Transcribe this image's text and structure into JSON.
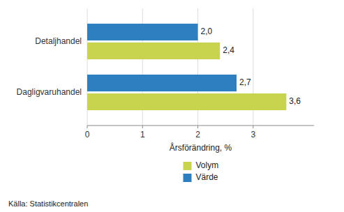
{
  "chart_data": {
    "type": "bar",
    "orientation": "horizontal",
    "categories": [
      "Dagligvaruhandel",
      "Detaljhandel"
    ],
    "series": [
      {
        "name": "Värde",
        "color": "#2e7fc0",
        "values": [
          2.7,
          2.0
        ],
        "value_labels": [
          "2,7",
          "2,0"
        ]
      },
      {
        "name": "Volym",
        "color": "#c8d44e",
        "values": [
          3.6,
          2.4
        ],
        "value_labels": [
          "3,6",
          "2,4"
        ]
      }
    ],
    "xlabel": "Årsförändring, %",
    "xlim": [
      0,
      4.1
    ],
    "xticks": [
      0,
      1,
      2,
      3
    ],
    "grid": true,
    "data_labels": true,
    "legend": "bottom",
    "source": "Källa: Statistikcentralen"
  }
}
